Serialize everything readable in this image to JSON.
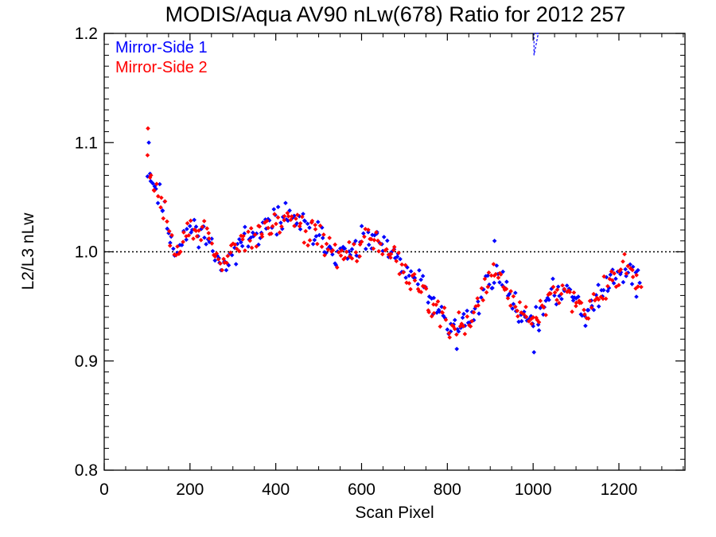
{
  "chart_data": {
    "type": "scatter",
    "title": "MODIS/Aqua AV90 nLw(678) Ratio for 2012 257",
    "xlabel": "Scan Pixel",
    "ylabel": "L2/L3 nLw",
    "xlim": [
      0,
      1354
    ],
    "ylim": [
      0.8,
      1.2
    ],
    "x_ticks": [
      0,
      200,
      400,
      600,
      800,
      1000,
      1200
    ],
    "x_tick_labels": [
      "0",
      "200",
      "400",
      "600",
      "800",
      "1000",
      "1200"
    ],
    "y_ticks": [
      0.8,
      0.9,
      1.0,
      1.1,
      1.2
    ],
    "y_tick_labels": [
      "0.8",
      "0.9",
      "1.0",
      "1.1",
      "1.2"
    ],
    "reference_line": {
      "y": 1.0,
      "style": "dotted",
      "color": "#000000"
    },
    "legend_position": "top-left",
    "x_range_points": [
      100,
      1250
    ],
    "series": [
      {
        "name": "Mirror-Side 1",
        "color": "#0000ff",
        "x_step": 4,
        "seed": 11
      },
      {
        "name": "Mirror-Side 2",
        "color": "#ff0000",
        "x_step": 4,
        "seed": 29
      }
    ],
    "trend": {
      "x": [
        100,
        110,
        130,
        150,
        165,
        180,
        195,
        215,
        235,
        255,
        272,
        290,
        320,
        360,
        400,
        430,
        460,
        500,
        540,
        575,
        610,
        640,
        660,
        700,
        740,
        780,
        810,
        835,
        860,
        885,
        905,
        925,
        950,
        975,
        1000,
        1025,
        1050,
        1080,
        1100,
        1120,
        1140,
        1160,
        1185,
        1210,
        1235,
        1250
      ],
      "y": [
        1.08,
        1.065,
        1.05,
        1.02,
        1.0,
        1.005,
        1.02,
        1.022,
        1.015,
        1.0,
        0.985,
        0.998,
        1.008,
        1.015,
        1.03,
        1.034,
        1.025,
        1.015,
        0.998,
        0.997,
        1.01,
        1.01,
        1.0,
        0.985,
        0.97,
        0.945,
        0.93,
        0.935,
        0.94,
        0.965,
        0.98,
        0.975,
        0.955,
        0.945,
        0.937,
        0.945,
        0.963,
        0.968,
        0.958,
        0.945,
        0.95,
        0.962,
        0.978,
        0.985,
        0.975,
        0.968
      ]
    },
    "outliers": [
      {
        "series": "Mirror-Side 2",
        "x": 102,
        "y": 1.113
      },
      {
        "series": "Mirror-Side 1",
        "x": 104,
        "y": 1.1
      },
      {
        "series": "Mirror-Side 1",
        "x": 910,
        "y": 1.01
      },
      {
        "series": "Mirror-Side 1",
        "x": 1002,
        "y": 0.908
      },
      {
        "series": "Mirror-Side 1",
        "x": 822,
        "y": 0.911
      }
    ],
    "edge_marker": {
      "series": "Mirror-Side 1",
      "x": [
        1002,
        1012
      ],
      "y": [
        1.2,
        1.18
      ],
      "style": "dashed",
      "color": "#0000ff"
    }
  }
}
